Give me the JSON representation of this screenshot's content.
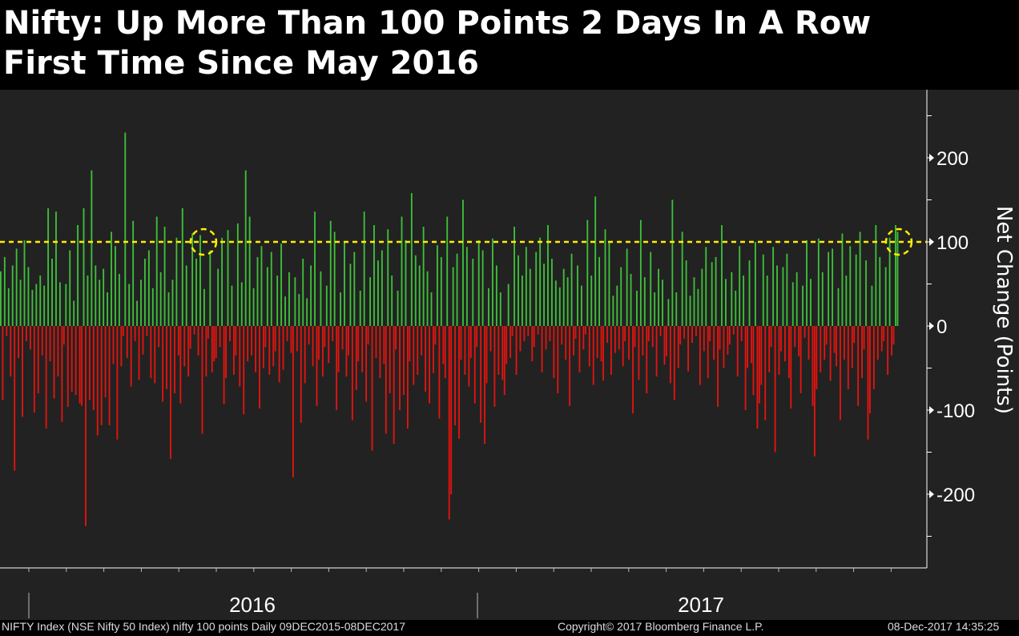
{
  "title": {
    "line1": "Nifty: Up More Than 100 Points 2 Days In A Row",
    "line2": "First Time Since May 2016"
  },
  "footer": {
    "left": "NIFTY Index (NSE Nifty 50 Index) nifty 100 points  Daily 09DEC2015-08DEC2017",
    "center": "Copyright© 2017 Bloomberg Finance L.P.",
    "right": "08-Dec-2017 14:35:25"
  },
  "colors": {
    "background": "#222222",
    "positive": "#3fbf3a",
    "negative": "#e4140f",
    "threshold": "#ffee00",
    "axis": "#ffffff"
  },
  "chart_data": {
    "type": "bar",
    "ylabel": "Net Change (Points)",
    "ylim": [
      -280,
      280
    ],
    "yticks": [
      200,
      100,
      0,
      -100,
      -200
    ],
    "xticks": [
      "2016",
      "2017"
    ],
    "threshold": 100,
    "highlights": [
      {
        "date": "2016-05",
        "value": 100
      },
      {
        "date": "2017-12",
        "value": 100
      }
    ],
    "series": [
      {
        "values": [
          65,
          -88,
          82,
          -12,
          45,
          -60,
          72,
          -172,
          92,
          -38,
          55,
          -108,
          102,
          -18,
          70,
          -28,
          43,
          -103,
          50,
          -80,
          60,
          -35,
          48,
          -122,
          140,
          -42,
          80,
          -86,
          136,
          -60,
          52,
          -114,
          -22,
          50,
          -96,
          90,
          -78,
          30,
          -82,
          120,
          -92,
          -95,
          140,
          -238,
          60,
          -88,
          185,
          -100,
          72,
          -130,
          55,
          -118,
          68,
          -85,
          40,
          -118,
          112,
          -45,
          95,
          -135,
          62,
          -48,
          -12,
          230,
          -38,
          50,
          -72,
          125,
          -18,
          30,
          -64,
          55,
          -34,
          80,
          -12,
          90,
          -62,
          45,
          -68,
          130,
          -25,
          64,
          -90,
          118,
          -75,
          40,
          -158,
          55,
          -80,
          105,
          -35,
          -92,
          140,
          -48,
          72,
          -60,
          -27,
          110,
          -10,
          80,
          -35,
          108,
          -128,
          44,
          -60,
          -15,
          90,
          -55,
          -42,
          -38,
          68,
          -25,
          105,
          -93,
          -62,
          114,
          -18,
          48,
          -58,
          -35,
          122,
          -72,
          52,
          -105,
          185,
          -42,
          130,
          -35,
          45,
          -55,
          82,
          -98,
          95,
          -50,
          -25,
          70,
          -58,
          88,
          -48,
          -30,
          60,
          -67,
          98,
          -52,
          35,
          -18,
          64,
          -32,
          -180,
          58,
          -30,
          38,
          -115,
          80,
          -68,
          33,
          -22,
          72,
          -48,
          136,
          -95,
          -40,
          65,
          -60,
          -25,
          48,
          -44,
          125,
          -18,
          112,
          -100,
          -55,
          40,
          -28,
          100,
          -60,
          -35,
          74,
          -112,
          88,
          -76,
          -42,
          42,
          -55,
          136,
          -90,
          -22,
          58,
          -148,
          120,
          -38,
          78,
          -62,
          90,
          -45,
          -128,
          115,
          -80,
          60,
          -140,
          -28,
          42,
          -100,
          130,
          -82,
          102,
          -122,
          -42,
          158,
          -70,
          84,
          -58,
          72,
          -35,
          118,
          -78,
          65,
          -92,
          40,
          -56,
          -22,
          96,
          -110,
          82,
          -45,
          -62,
          130,
          -230,
          -200,
          70,
          -118,
          86,
          -134,
          -40,
          150,
          -58,
          94,
          -72,
          -38,
          80,
          -92,
          -25,
          102,
          -115,
          90,
          -140,
          -68,
          45,
          -30,
          104,
          -96,
          72,
          -58,
          40,
          -64,
          -82,
          -45,
          50,
          -38,
          -12,
          118,
          -58,
          84,
          -30,
          60,
          -18,
          94,
          -12,
          68,
          -42,
          -25,
          88,
          -10,
          105,
          -55,
          74,
          -28,
          120,
          -18,
          80,
          -62,
          54,
          -80,
          46,
          -22,
          68,
          -40,
          58,
          -95,
          86,
          -35,
          -15,
          72,
          -55,
          48,
          -28,
          -10,
          126,
          -48,
          60,
          -70,
          154,
          -38,
          82,
          -42,
          -65,
          115,
          -20,
          100,
          -58,
          36,
          -32,
          48,
          -28,
          70,
          -48,
          -18,
          92,
          -40,
          62,
          -104,
          -25,
          42,
          -64,
          126,
          -35,
          58,
          -80,
          -18,
          88,
          -25,
          40,
          -60,
          68,
          -12,
          55,
          -46,
          -36,
          32,
          -68,
          150,
          -88,
          40,
          -50,
          -22,
          112,
          -15,
          78,
          -54,
          36,
          -20,
          58,
          -12,
          44,
          -70,
          68,
          -30,
          94,
          -62,
          -18,
          76,
          -40,
          82,
          -96,
          -28,
          120,
          -50,
          56,
          -34,
          -22,
          64,
          -10,
          42,
          -60,
          95,
          -18,
          60,
          -100,
          -50,
          78,
          -44,
          -82,
          100,
          -122,
          -92,
          -70,
          85,
          -112,
          60,
          -55,
          -25,
          94,
          -150,
          72,
          -58,
          -30,
          70,
          -42,
          86,
          -62,
          -98,
          52,
          -25,
          64,
          -36,
          -80,
          48,
          -14,
          102,
          -40,
          56,
          -95,
          -155,
          -75,
          104,
          -55,
          64,
          -40,
          -22,
          88,
          -65,
          92,
          -32,
          -48,
          45,
          -112,
          110,
          -40,
          60,
          -75,
          95,
          -50,
          -20,
          85,
          -95,
          112,
          -62,
          -28,
          78,
          -135,
          -104,
          48,
          -75,
          120,
          -40,
          82,
          -30,
          -18,
          70,
          -58,
          105,
          -35,
          -22,
          120,
          112
        ]
      }
    ]
  }
}
